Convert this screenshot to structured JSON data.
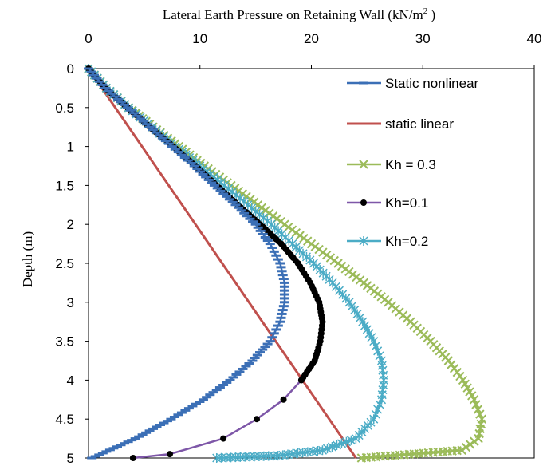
{
  "chart_data": {
    "type": "line",
    "title": "",
    "xlabel": "Lateral Earth Pressure on Retaining Wall (kN/m",
    "xlabel_sup": "2",
    "xlabel_tail": " )",
    "ylabel": "Depth (m)",
    "xlim": [
      0,
      40
    ],
    "ylim": [
      0,
      5
    ],
    "x_axis_position": "top",
    "y_axis_inverted": true,
    "grid": false,
    "legend_placement": "top-right",
    "x_ticks": [
      "0",
      "10",
      "20",
      "30",
      "40"
    ],
    "y_ticks": [
      "0",
      "0.5",
      "1",
      "1.5",
      "2",
      "2.5",
      "3",
      "3.5",
      "4",
      "4.5",
      "5"
    ],
    "series": [
      {
        "name": "Static nonlinear",
        "color": "#3B6FB6",
        "marker": "dash",
        "points": [
          [
            0,
            0
          ],
          [
            1.5,
            0.25
          ],
          [
            3.5,
            0.5
          ],
          [
            5.5,
            0.75
          ],
          [
            7.5,
            1.0
          ],
          [
            9.5,
            1.25
          ],
          [
            11.3,
            1.5
          ],
          [
            13.2,
            1.75
          ],
          [
            15,
            2.0
          ],
          [
            16.3,
            2.25
          ],
          [
            17.2,
            2.5
          ],
          [
            17.6,
            2.75
          ],
          [
            17.6,
            3.0
          ],
          [
            17.2,
            3.25
          ],
          [
            16.3,
            3.5
          ],
          [
            14.7,
            3.75
          ],
          [
            12.7,
            4.0
          ],
          [
            10.3,
            4.25
          ],
          [
            7.4,
            4.5
          ],
          [
            4.2,
            4.75
          ],
          [
            0.3,
            5.0
          ]
        ]
      },
      {
        "name": "static linear",
        "color": "#C0504D",
        "marker": "none",
        "points": [
          [
            0,
            0
          ],
          [
            24,
            5
          ]
        ]
      },
      {
        "name": "Kh = 0.3",
        "color": "#9BBB59",
        "marker": "x",
        "points": [
          [
            0,
            0
          ],
          [
            1.6,
            0.25
          ],
          [
            3.6,
            0.5
          ],
          [
            5.8,
            0.75
          ],
          [
            8.1,
            1.0
          ],
          [
            10.4,
            1.25
          ],
          [
            12.8,
            1.5
          ],
          [
            15.2,
            1.75
          ],
          [
            17.6,
            2.0
          ],
          [
            20,
            2.25
          ],
          [
            22.4,
            2.5
          ],
          [
            24.7,
            2.75
          ],
          [
            26.9,
            3.0
          ],
          [
            28.9,
            3.25
          ],
          [
            30.7,
            3.5
          ],
          [
            32.3,
            3.75
          ],
          [
            33.6,
            4.0
          ],
          [
            34.6,
            4.25
          ],
          [
            35.3,
            4.5
          ],
          [
            35,
            4.75
          ],
          [
            33.5,
            4.9
          ],
          [
            24.5,
            5.0
          ]
        ]
      },
      {
        "name": "Kh=0.1",
        "color": "#7E57A8",
        "marker": "dot",
        "points": [
          [
            0,
            0
          ],
          [
            1.5,
            0.25
          ],
          [
            3.5,
            0.5
          ],
          [
            5.5,
            0.75
          ],
          [
            7.6,
            1.0
          ],
          [
            9.6,
            1.25
          ],
          [
            11.5,
            1.5
          ],
          [
            13.4,
            1.75
          ],
          [
            15.4,
            2.0
          ],
          [
            17.3,
            2.25
          ],
          [
            18.8,
            2.5
          ],
          [
            19.9,
            2.75
          ],
          [
            20.7,
            3.0
          ],
          [
            21,
            3.25
          ],
          [
            20.8,
            3.5
          ],
          [
            20.3,
            3.75
          ],
          [
            19.1,
            4.0
          ],
          [
            17.5,
            4.25
          ],
          [
            15.1,
            4.5
          ],
          [
            12.1,
            4.75
          ],
          [
            7.3,
            4.95
          ],
          [
            4,
            5.0
          ]
        ]
      },
      {
        "name": "Kh=0.2",
        "color": "#4BACC6",
        "marker": "star",
        "points": [
          [
            0,
            0
          ],
          [
            1.6,
            0.25
          ],
          [
            3.6,
            0.5
          ],
          [
            5.7,
            0.75
          ],
          [
            7.8,
            1.0
          ],
          [
            10,
            1.25
          ],
          [
            12.2,
            1.5
          ],
          [
            14.3,
            1.75
          ],
          [
            16.4,
            2.0
          ],
          [
            18.3,
            2.25
          ],
          [
            20.2,
            2.5
          ],
          [
            21.9,
            2.75
          ],
          [
            23.4,
            3.0
          ],
          [
            24.6,
            3.25
          ],
          [
            25.6,
            3.5
          ],
          [
            26.3,
            3.75
          ],
          [
            26.5,
            4.0
          ],
          [
            26.3,
            4.25
          ],
          [
            25.6,
            4.5
          ],
          [
            24,
            4.75
          ],
          [
            21,
            4.9
          ],
          [
            17,
            4.97
          ],
          [
            11.5,
            5.0
          ]
        ]
      }
    ]
  }
}
